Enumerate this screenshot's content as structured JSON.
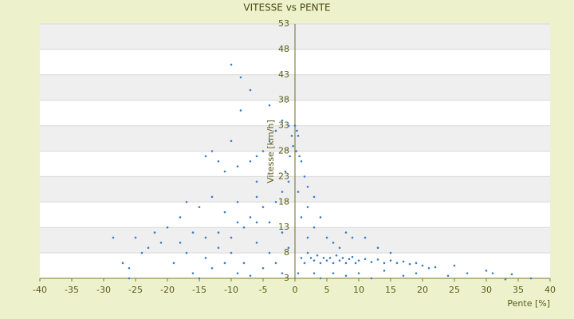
{
  "chart_data": {
    "type": "scatter",
    "title": "VITESSE vs PENTE",
    "x_label": "Pente [%]",
    "y_label": "Vitesse [km/h]",
    "color": "#3a7dc9",
    "grid": true,
    "xlim": [
      -40,
      40
    ],
    "ylim": [
      3,
      53
    ],
    "xticks": [
      -40,
      -35,
      -30,
      -25,
      -20,
      -15,
      -10,
      -5,
      0,
      5,
      10,
      15,
      20,
      25,
      30,
      35,
      40
    ],
    "yticks": [
      3,
      8,
      13,
      18,
      23,
      28,
      33,
      38,
      43,
      48,
      53
    ],
    "x": [
      -10,
      -8.5,
      -7,
      -8.5,
      -4,
      -10,
      -13,
      -14,
      -12,
      -11,
      -9,
      -7,
      -6,
      -5,
      -4,
      -3,
      -2,
      -1,
      -0.5,
      0,
      0.3,
      0.5,
      -0.3,
      0.2,
      -0.8,
      0.7,
      1,
      -1.5,
      1.5,
      2,
      3,
      -2,
      -3,
      -5,
      -6,
      -7,
      -9,
      -11,
      -13,
      -15,
      -17,
      -18,
      -20,
      -22,
      -25,
      -28.5,
      -24,
      -26,
      -27,
      -26,
      -19,
      -16,
      -14,
      -12,
      -10,
      -8,
      -6,
      -4,
      -3,
      -2,
      -1,
      -5,
      -7,
      -9,
      -11,
      -13,
      -15,
      -17,
      -21,
      -23,
      -12,
      -9,
      -6,
      -4,
      -2,
      0.5,
      1,
      1.5,
      2,
      2.5,
      3,
      3.5,
      4,
      4.5,
      5,
      5.5,
      6,
      6.5,
      7,
      7.5,
      8,
      8.5,
      9,
      9.5,
      10,
      11,
      12,
      13,
      14,
      15,
      16,
      17,
      18,
      19,
      20,
      21,
      22,
      25,
      24,
      27,
      30,
      31,
      33,
      34,
      37,
      2,
      3,
      4,
      5,
      6,
      7,
      8,
      9,
      11,
      13,
      15,
      6,
      8,
      10,
      12,
      14,
      17,
      19,
      3,
      4,
      1,
      2,
      0.5,
      -1,
      -16,
      -18,
      -10,
      -8,
      -6,
      -14
    ],
    "values": [
      45,
      42.5,
      40,
      36,
      37,
      30,
      28,
      27,
      26,
      24,
      25,
      26,
      27,
      28,
      30,
      32,
      34,
      33,
      31,
      33,
      32,
      31,
      29,
      28,
      27,
      27,
      26,
      24,
      23,
      21,
      19,
      20,
      18,
      17,
      19,
      15,
      14,
      16,
      19,
      17,
      18,
      15,
      13,
      12,
      11,
      11,
      8,
      5,
      6,
      3,
      6,
      4,
      7,
      9,
      11,
      13,
      10,
      8,
      6,
      12,
      9,
      5,
      3.5,
      4,
      6,
      5,
      3,
      8,
      10,
      9,
      12,
      18,
      22,
      14,
      4,
      4,
      7,
      6,
      8,
      7,
      6.5,
      7.5,
      6,
      7,
      6.5,
      7,
      6,
      7.5,
      6.5,
      7,
      6,
      6.8,
      7.2,
      6,
      6.5,
      6.8,
      6.2,
      6.7,
      6,
      6.5,
      6,
      6.3,
      5.8,
      6,
      5.5,
      5,
      5.2,
      5.5,
      3.5,
      4,
      4.5,
      4,
      2.8,
      3.8,
      3,
      11,
      13,
      15,
      11,
      10,
      9,
      12,
      11,
      11,
      9,
      8,
      4,
      3.5,
      4,
      3,
      4.5,
      3.5,
      4,
      4,
      3,
      15,
      17,
      20,
      22,
      12,
      10,
      8,
      6,
      14,
      11
    ]
  }
}
